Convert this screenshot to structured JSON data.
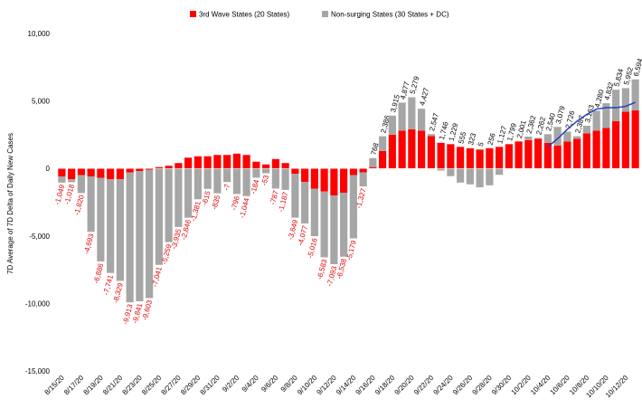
{
  "chart_data": {
    "type": "stacked_bar",
    "y_label": "7D Average of 7D Delta of Daily New Cases",
    "categories": [
      "8/15/20",
      null,
      "8/17/20",
      null,
      "8/19/20",
      null,
      "8/21/20",
      null,
      "8/23/20",
      null,
      "8/25/20",
      null,
      "8/27/20",
      null,
      "8/29/20",
      null,
      "8/31/20",
      null,
      "9/2/20",
      null,
      "9/4/20",
      null,
      "9/6/20",
      null,
      "9/8/20",
      null,
      "9/10/20",
      null,
      "9/12/20",
      null,
      "9/14/20",
      null,
      "9/16/20",
      null,
      "9/18/20",
      null,
      "9/20/20",
      null,
      "9/22/20",
      null,
      "9/24/20",
      null,
      "9/26/20",
      null,
      "9/28/20",
      null,
      "9/30/20",
      null,
      "10/2/20",
      null,
      "10/4/20",
      null,
      "10/6/20",
      null,
      "10/8/20",
      null,
      "10/10/20",
      null,
      "10/12/20",
      null
    ],
    "series": [
      {
        "name": "3rd Wave States (20 States)",
        "color": "#ff0000",
        "values": [
          -600,
          -800,
          -500,
          -600,
          -700,
          -800,
          -800,
          -300,
          -200,
          -100,
          100,
          200,
          400,
          800,
          900,
          900,
          1000,
          1000,
          1100,
          1000,
          500,
          300,
          700,
          400,
          -400,
          -1000,
          -1500,
          -1700,
          -2000,
          -1800,
          -500,
          -300,
          100,
          1300,
          2500,
          2800,
          2900,
          2800,
          2400,
          1900,
          1800,
          1600,
          1500,
          1400,
          1500,
          1600,
          1800,
          2000,
          2100,
          2200,
          1900,
          1700,
          2000,
          2200,
          2600,
          2800,
          3000,
          3500,
          4200,
          4300
        ]
      },
      {
        "name": "Non-surging States (30 States + DC)",
        "color": "#a6a6a6",
        "values": [
          -449,
          -218,
          -1320,
          -4093,
          -6186,
          -6941,
          -7529,
          -9613,
          -9641,
          -9503,
          -7141,
          -5459,
          -4335,
          -3646,
          -2281,
          -1515,
          -1835,
          -1007,
          -1896,
          -2044,
          -684,
          -353,
          -1487,
          -1587,
          -3249,
          -3077,
          -3516,
          -4883,
          -5093,
          -4738,
          -4679,
          -1027,
          668,
          1086,
          1415,
          2077,
          2379,
          1627,
          147,
          -154,
          -571,
          -1045,
          -1177,
          -1395,
          -1244,
          -473,
          -1,
          1,
          262,
          62,
          640,
          1379,
          726,
          187,
          563,
          1480,
          1832,
          2334,
          1752,
          2294
        ]
      }
    ],
    "totals": [
      -1049,
      -1018,
      -1820,
      -4693,
      -6886,
      -7741,
      -8329,
      -9913,
      -9841,
      -9603,
      -7041,
      -5259,
      -3935,
      -2846,
      -1381,
      -615,
      -835,
      -7,
      -796,
      -1044,
      -184,
      -53,
      -787,
      -1187,
      -3649,
      -4077,
      -5016,
      -6583,
      -7093,
      -6538,
      -5179,
      -1327,
      768,
      2386,
      3915,
      4877,
      5279,
      4427,
      2547,
      1746,
      1229,
      555,
      323,
      5,
      256,
      1127,
      1799,
      2001,
      2362,
      2262,
      2540,
      3079,
      2726,
      2387,
      3163,
      4280,
      4832,
      5834,
      5952,
      6594
    ],
    "total_labels": [
      "-1,049",
      "-1,018",
      "-1,820",
      "-4,693",
      "-6,886",
      "-7,741",
      "-8,329",
      "-9,913",
      "-9,841",
      "-9,603",
      "-7,041",
      "-5,259",
      "-3,935",
      "-2,846",
      "-1,381",
      "-615",
      "-835",
      "-7",
      "-796",
      "-1,044",
      "-184",
      "-53",
      "-787",
      "-1,187",
      "-3,649",
      "-4,077",
      "-5,016",
      "-6,583",
      "-7,093",
      "-6,538",
      "-5,179",
      "-1,327",
      "768",
      "2,386",
      "3,915",
      "4,877",
      "5,279",
      "4,427",
      "2,547",
      "1,746",
      "1,229",
      "555",
      "323",
      "5",
      "256",
      "1,127",
      "1,799",
      "2,001",
      "2,362",
      "2,262",
      "2,540",
      "3,079",
      "2,726",
      "2,387",
      "3,163",
      "4,280",
      "4,832",
      "5,834",
      "5,952",
      "6,594"
    ],
    "trend": {
      "color": "#1f3fbf",
      "values": [
        null,
        null,
        null,
        null,
        null,
        null,
        null,
        null,
        null,
        null,
        null,
        null,
        null,
        null,
        null,
        null,
        null,
        null,
        null,
        null,
        null,
        null,
        null,
        null,
        null,
        null,
        null,
        null,
        null,
        null,
        null,
        null,
        null,
        null,
        null,
        null,
        null,
        null,
        null,
        null,
        null,
        null,
        null,
        null,
        null,
        null,
        null,
        null,
        null,
        null,
        1600,
        2200,
        2900,
        3500,
        4000,
        4400,
        4500,
        4500,
        4600,
        4900
      ]
    },
    "ylim": [
      -15000,
      10000
    ],
    "yticks": [
      {
        "value": 10000,
        "label": "10,000"
      },
      {
        "value": 5000,
        "label": "5,000"
      },
      0,
      {
        "value": -5000,
        "label": "-5,000"
      },
      {
        "value": -10000,
        "label": "-10,000"
      },
      {
        "value": -15000,
        "label": "-15,000"
      }
    ],
    "negative_label_color": "#e00000"
  }
}
